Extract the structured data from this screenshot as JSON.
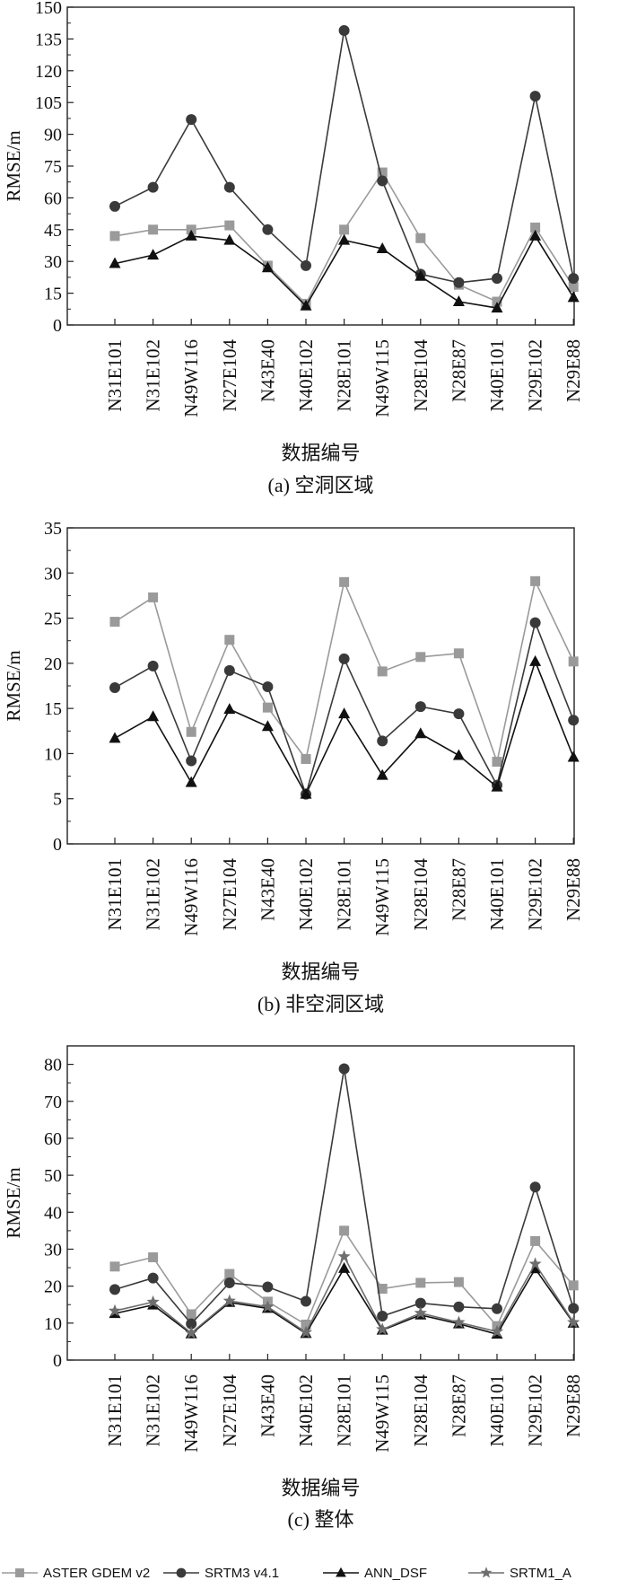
{
  "legend": [
    "ASTER GDEM v2",
    "SRTM3 v4.1",
    "ANN_DSF",
    "SRTM1_A"
  ],
  "colors": {
    "aster": "#9a9a9a",
    "srtm3": "#3a3a3a",
    "ann": "#111111",
    "srtm1": "#6e6e6e",
    "axis": "#222222"
  },
  "chart_data": [
    {
      "type": "line",
      "caption": "(a) 空洞区域",
      "xlabel": "数据编号",
      "ylabel": "RMSE/m",
      "categories": [
        "N31E101",
        "N31E102",
        "N49W116",
        "N27E104",
        "N43E40",
        "N40E102",
        "N28E101",
        "N49W115",
        "N28E104",
        "N28E87",
        "N40E101",
        "N29E102",
        "N29E88"
      ],
      "ylim": [
        0,
        150
      ],
      "yticks": [
        0,
        15,
        30,
        45,
        60,
        75,
        90,
        105,
        120,
        135,
        150
      ],
      "series": [
        {
          "name": "ASTER GDEM v2",
          "values": [
            42,
            45,
            45,
            47,
            28,
            10,
            45,
            72,
            41,
            19,
            11,
            46,
            18
          ]
        },
        {
          "name": "SRTM3 v4.1",
          "values": [
            56,
            65,
            97,
            65,
            45,
            28,
            139,
            68,
            24,
            20,
            22,
            108,
            22
          ]
        },
        {
          "name": "ANN_DSF",
          "values": [
            29,
            33,
            42,
            40,
            27,
            9,
            40,
            36,
            23,
            11,
            8,
            42,
            13
          ]
        }
      ]
    },
    {
      "type": "line",
      "caption": "(b) 非空洞区域",
      "xlabel": "数据编号",
      "ylabel": "RMSE/m",
      "categories": [
        "N31E101",
        "N31E102",
        "N49W116",
        "N27E104",
        "N43E40",
        "N40E102",
        "N28E101",
        "N49W115",
        "N28E104",
        "N28E87",
        "N40E101",
        "N29E102",
        "N29E88"
      ],
      "ylim": [
        0,
        35
      ],
      "yticks": [
        0,
        5,
        10,
        15,
        20,
        25,
        30,
        35
      ],
      "series": [
        {
          "name": "ASTER GDEM v2",
          "values": [
            24.6,
            27.3,
            12.4,
            22.6,
            15.1,
            9.4,
            29.0,
            19.1,
            20.7,
            21.1,
            9.1,
            29.1,
            20.2
          ]
        },
        {
          "name": "SRTM3 v4.1",
          "values": [
            17.3,
            19.7,
            9.2,
            19.2,
            17.4,
            5.5,
            20.5,
            11.4,
            15.2,
            14.4,
            6.5,
            24.5,
            13.7
          ]
        },
        {
          "name": "ANN_DSF",
          "values": [
            11.7,
            14.1,
            6.8,
            14.9,
            13.0,
            5.5,
            14.4,
            7.6,
            12.2,
            9.8,
            6.3,
            20.2,
            9.6
          ]
        }
      ]
    },
    {
      "type": "line",
      "caption": "(c) 整体",
      "xlabel": "数据编号",
      "ylabel": "RMSE/m",
      "categories": [
        "N31E101",
        "N31E102",
        "N49W116",
        "N27E104",
        "N43E40",
        "N40E102",
        "N28E101",
        "N49W115",
        "N28E104",
        "N28E87",
        "N40E101",
        "N29E102",
        "N29E88"
      ],
      "ylim": [
        0,
        85
      ],
      "yticks": [
        0,
        10,
        20,
        30,
        40,
        50,
        60,
        70,
        80
      ],
      "series": [
        {
          "name": "ASTER GDEM v2",
          "values": [
            25.3,
            27.8,
            12.4,
            23.3,
            15.8,
            9.6,
            35.0,
            19.3,
            20.9,
            21.1,
            9.2,
            32.2,
            20.2
          ]
        },
        {
          "name": "SRTM3 v4.1",
          "values": [
            19.1,
            22.2,
            9.8,
            20.9,
            19.8,
            15.9,
            78.8,
            11.9,
            15.4,
            14.4,
            13.9,
            46.8,
            14.0
          ]
        },
        {
          "name": "ANN_DSF",
          "values": [
            12.6,
            14.9,
            7.1,
            15.6,
            14.0,
            7.2,
            24.8,
            8.1,
            12.2,
            9.8,
            7.0,
            24.7,
            10.0
          ]
        },
        {
          "name": "SRTM1_A",
          "values": [
            13.3,
            15.7,
            7.3,
            16.0,
            14.4,
            7.5,
            28.0,
            8.3,
            12.7,
            10.2,
            7.7,
            26.0,
            10.2
          ]
        }
      ]
    }
  ]
}
